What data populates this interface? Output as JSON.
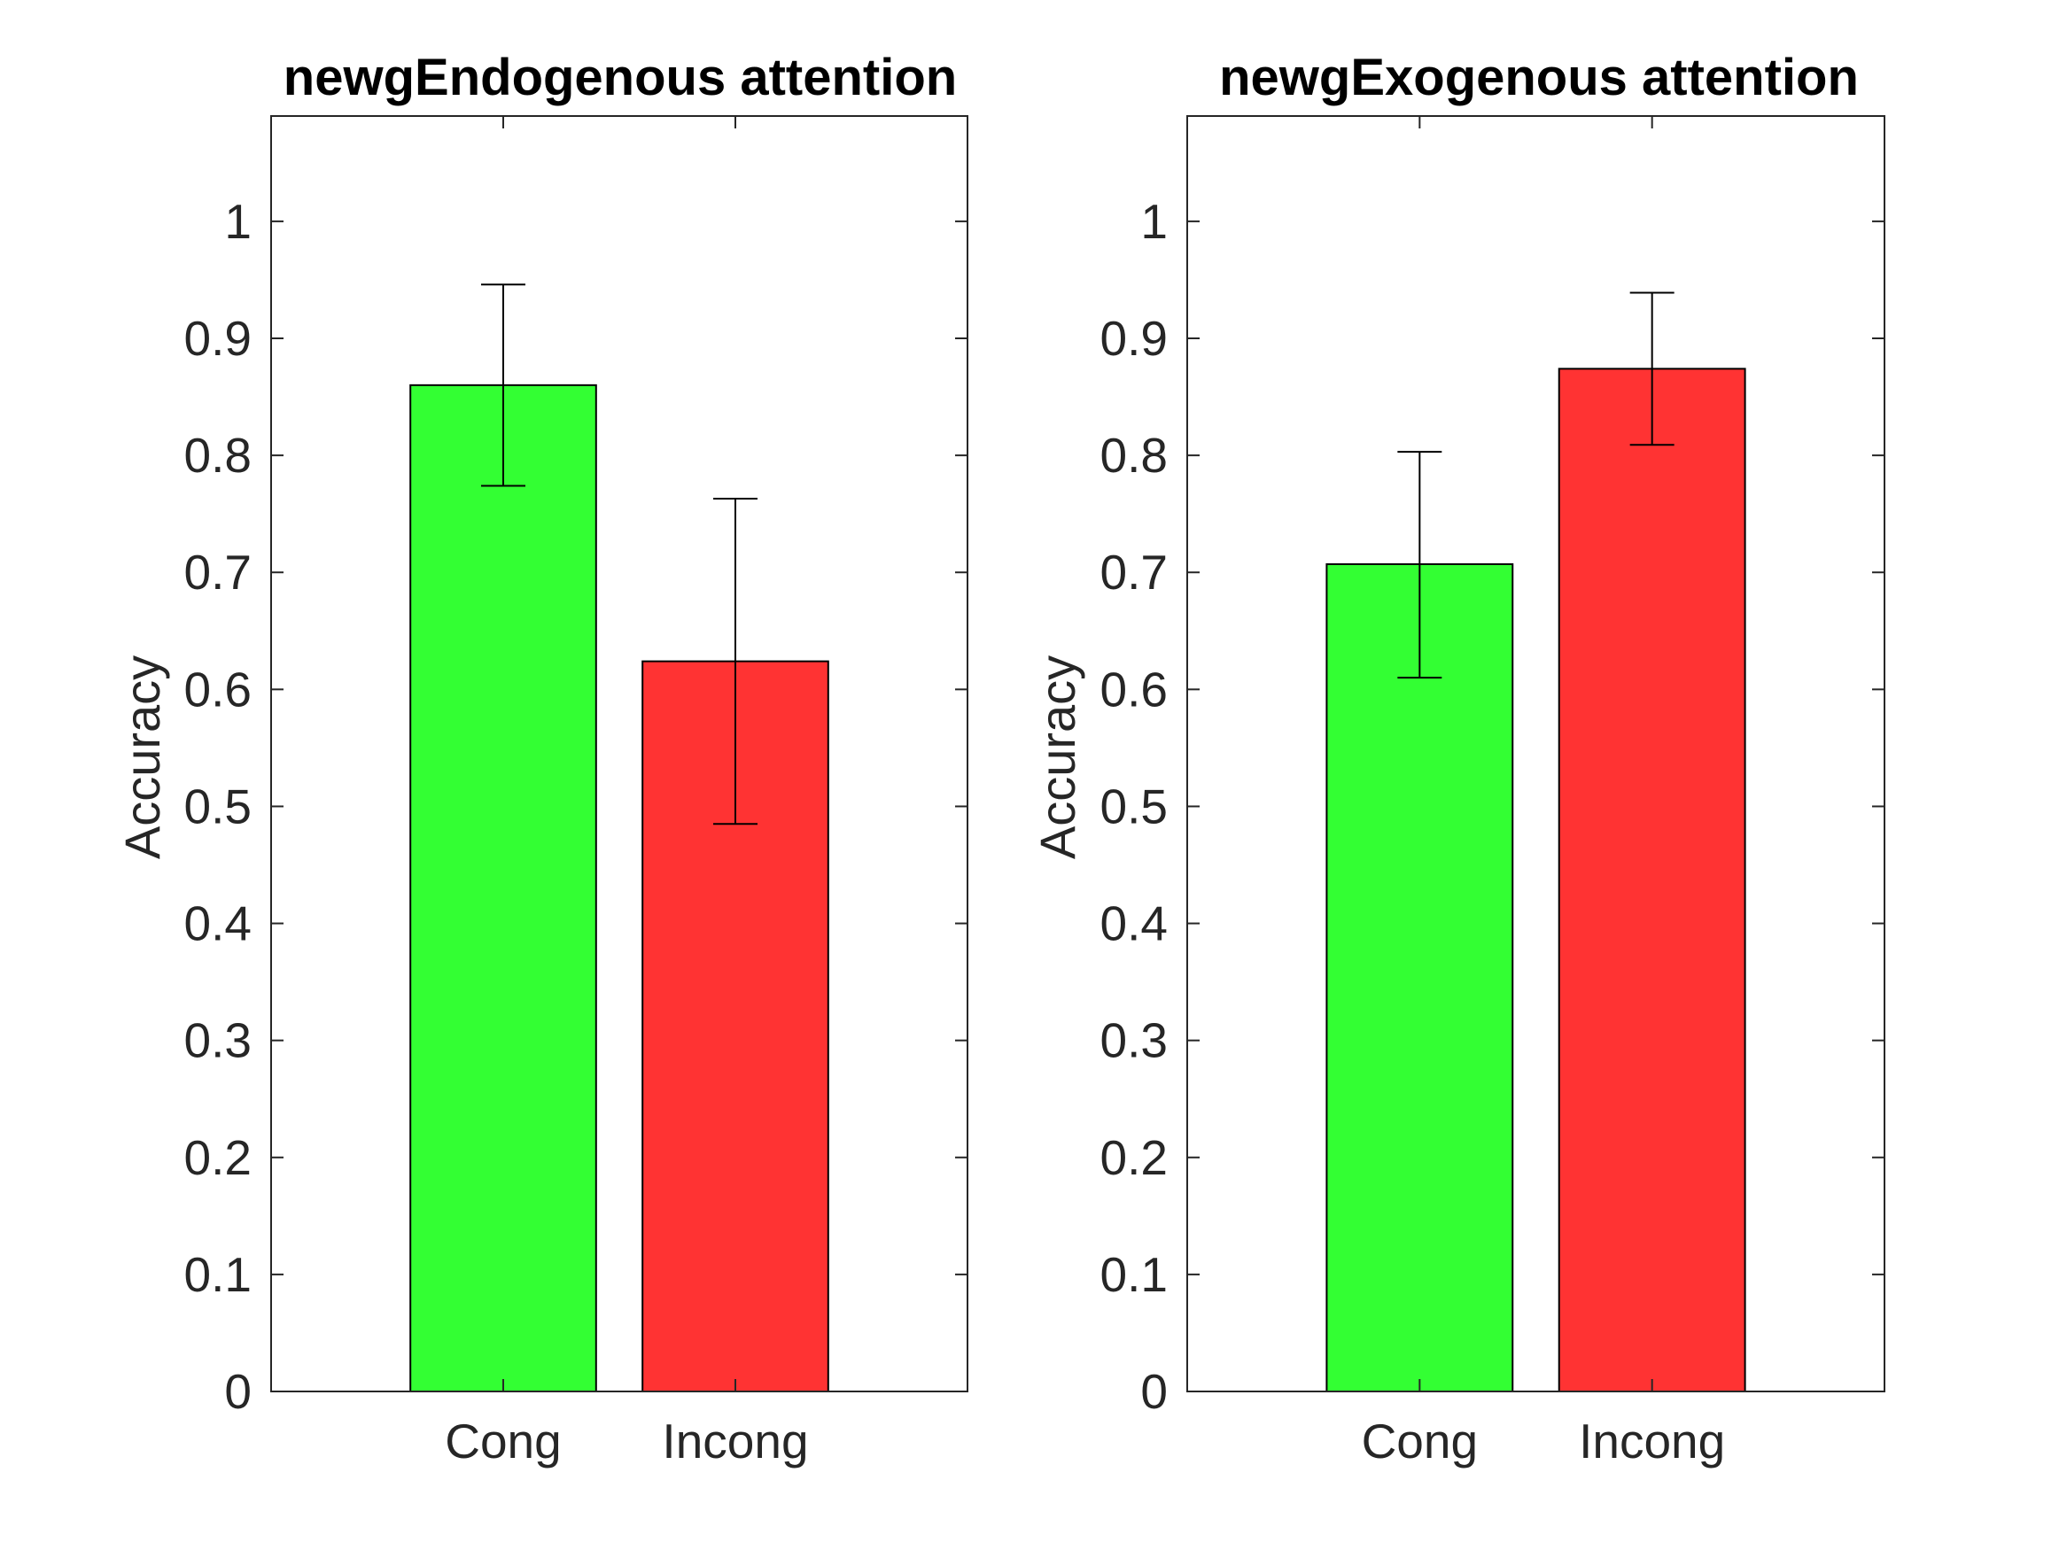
{
  "figure": {
    "background": "#ffffff",
    "axis_color": "#262626",
    "bar_edge_color": "#000000"
  },
  "chart_data": [
    {
      "type": "bar",
      "title": "newgEndogenous attention",
      "xlabel": "",
      "ylabel": "Accuracy",
      "categories": [
        "Cong",
        "Incong"
      ],
      "values": [
        0.86,
        0.624
      ],
      "error_low": [
        0.774,
        0.485
      ],
      "error_high": [
        0.946,
        0.763
      ],
      "colors": [
        "#33ff33",
        "#ff3333"
      ],
      "ylim": [
        0,
        1.09
      ],
      "xlim": [
        0,
        3
      ],
      "yticks": [
        0,
        0.1,
        0.2,
        0.3,
        0.4,
        0.5,
        0.6,
        0.7,
        0.8,
        0.9,
        1
      ],
      "ytick_labels": [
        "0",
        "0.1",
        "0.2",
        "0.3",
        "0.4",
        "0.5",
        "0.6",
        "0.7",
        "0.8",
        "0.9",
        "1"
      ],
      "grid": false,
      "legend": null
    },
    {
      "type": "bar",
      "title": "newgExogenous attention",
      "xlabel": "",
      "ylabel": "Accuracy",
      "categories": [
        "Cong",
        "Incong"
      ],
      "values": [
        0.707,
        0.874
      ],
      "error_low": [
        0.61,
        0.809
      ],
      "error_high": [
        0.803,
        0.939
      ],
      "colors": [
        "#33ff33",
        "#ff3333"
      ],
      "ylim": [
        0,
        1.09
      ],
      "xlim": [
        0,
        3
      ],
      "yticks": [
        0,
        0.1,
        0.2,
        0.3,
        0.4,
        0.5,
        0.6,
        0.7,
        0.8,
        0.9,
        1
      ],
      "ytick_labels": [
        "0",
        "0.1",
        "0.2",
        "0.3",
        "0.4",
        "0.5",
        "0.6",
        "0.7",
        "0.8",
        "0.9",
        "1"
      ],
      "grid": false,
      "legend": null
    }
  ]
}
